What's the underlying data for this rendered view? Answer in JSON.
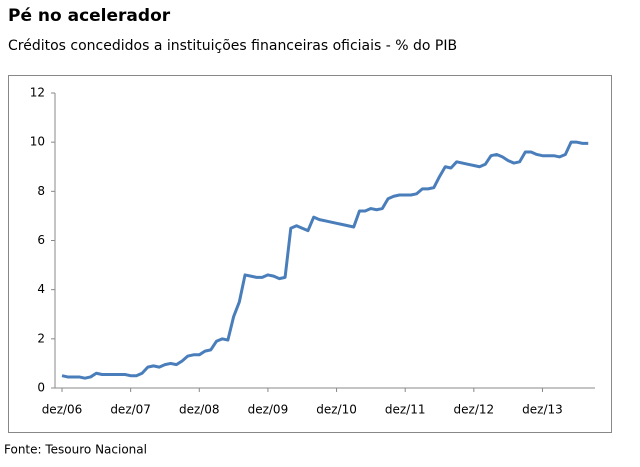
{
  "chart_data": {
    "type": "line",
    "title": "Pé no acelerador",
    "subtitle": "Créditos concedidos a instituições financeiras oficiais - % do PIB",
    "source": "Fonte: Tesouro Nacional",
    "color": "#4a7ebb",
    "categories": [
      "dez/06",
      null,
      null,
      null,
      null,
      null,
      null,
      null,
      null,
      null,
      null,
      null,
      "dez/07",
      null,
      null,
      null,
      null,
      null,
      null,
      null,
      null,
      null,
      null,
      null,
      "dez/08",
      null,
      null,
      null,
      null,
      null,
      null,
      null,
      null,
      null,
      null,
      null,
      "dez/09",
      null,
      null,
      null,
      null,
      null,
      null,
      null,
      null,
      null,
      null,
      null,
      "dez/10",
      null,
      null,
      null,
      null,
      null,
      null,
      null,
      null,
      null,
      null,
      null,
      "dez/11",
      null,
      null,
      null,
      null,
      null,
      null,
      null,
      null,
      null,
      null,
      null,
      "dez/12",
      null,
      null,
      null,
      null,
      null,
      null,
      null,
      null,
      null,
      null,
      null,
      "dez/13",
      null,
      null,
      null,
      null,
      null,
      null,
      null,
      null
    ],
    "values": [
      0.5,
      0.45,
      0.45,
      0.45,
      0.4,
      0.45,
      0.6,
      0.55,
      0.55,
      0.55,
      0.55,
      0.55,
      0.5,
      0.5,
      0.6,
      0.85,
      0.9,
      0.85,
      0.95,
      1.0,
      0.95,
      1.1,
      1.3,
      1.35,
      1.35,
      1.5,
      1.55,
      1.9,
      2.0,
      1.95,
      2.9,
      3.5,
      4.6,
      4.55,
      4.5,
      4.5,
      4.6,
      4.55,
      4.45,
      4.5,
      6.5,
      6.6,
      6.5,
      6.4,
      6.95,
      6.85,
      6.8,
      6.75,
      6.7,
      6.65,
      6.6,
      6.55,
      7.2,
      7.2,
      7.3,
      7.25,
      7.3,
      7.7,
      7.8,
      7.85,
      7.85,
      7.85,
      7.9,
      8.1,
      8.1,
      8.15,
      8.6,
      9.0,
      8.95,
      9.2,
      9.15,
      9.1,
      9.05,
      9.0,
      9.1,
      9.45,
      9.5,
      9.4,
      9.25,
      9.15,
      9.2,
      9.6,
      9.6,
      9.5,
      9.45,
      9.45,
      9.45,
      9.4,
      9.5,
      10.0,
      10.0,
      9.95,
      9.95
    ],
    "ylim": [
      0,
      12
    ],
    "yticks": [
      0,
      2,
      4,
      6,
      8,
      10,
      12
    ],
    "grid": false
  }
}
